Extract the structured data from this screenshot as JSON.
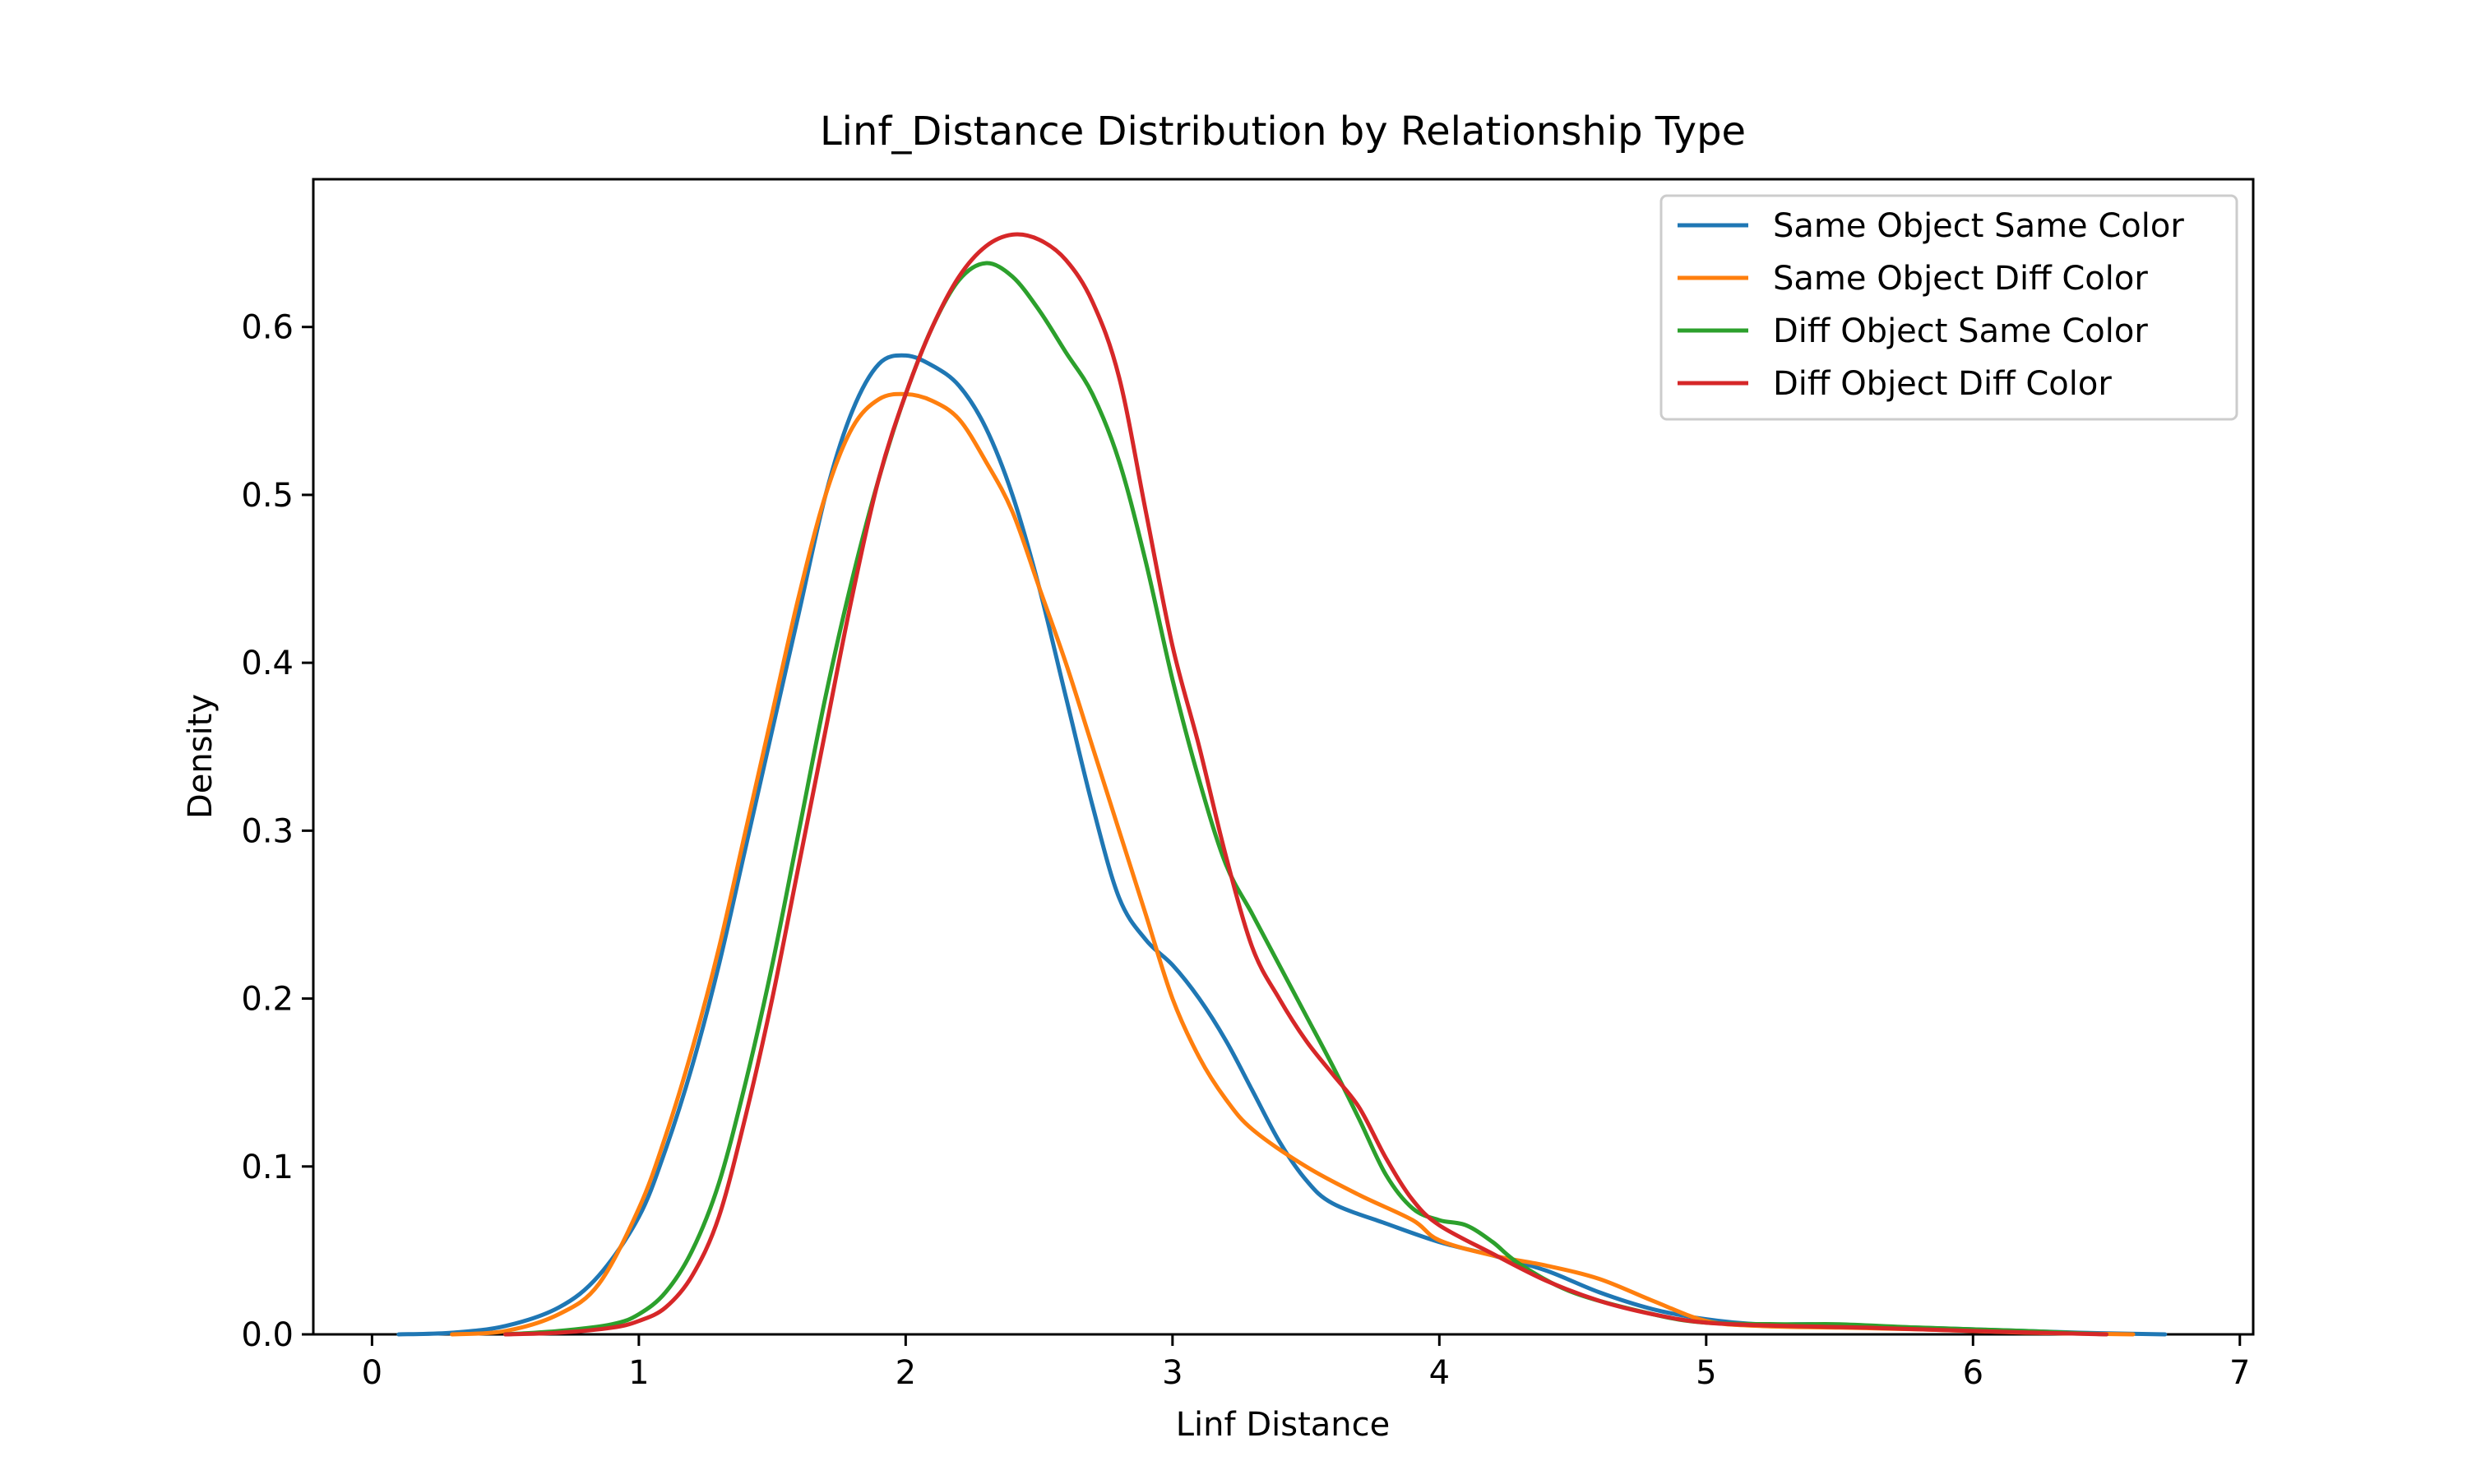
{
  "chart_data": {
    "type": "line",
    "title": "Linf_Distance Distribution by Relationship Type",
    "xlabel": "Linf Distance",
    "ylabel": "Density",
    "xlim": [
      -0.22,
      7.05
    ],
    "ylim": [
      0,
      0.688
    ],
    "xticks": [
      0,
      1,
      2,
      3,
      4,
      5,
      6,
      7
    ],
    "yticks": [
      0.0,
      0.1,
      0.2,
      0.3,
      0.4,
      0.5,
      0.6
    ],
    "xtick_labels": [
      "0",
      "1",
      "2",
      "3",
      "4",
      "5",
      "6",
      "7"
    ],
    "ytick_labels": [
      "0.0",
      "0.1",
      "0.2",
      "0.3",
      "0.4",
      "0.5",
      "0.6"
    ],
    "grid": false,
    "legend_position": "top-right",
    "series": [
      {
        "name": "Same Object Same Color",
        "color": "#1f77b4",
        "points": [
          [
            0.1,
            0.0
          ],
          [
            0.3,
            0.001
          ],
          [
            0.5,
            0.005
          ],
          [
            0.7,
            0.016
          ],
          [
            0.85,
            0.035
          ],
          [
            1.0,
            0.07
          ],
          [
            1.1,
            0.11
          ],
          [
            1.2,
            0.16
          ],
          [
            1.3,
            0.22
          ],
          [
            1.4,
            0.29
          ],
          [
            1.5,
            0.36
          ],
          [
            1.6,
            0.43
          ],
          [
            1.7,
            0.5
          ],
          [
            1.8,
            0.55
          ],
          [
            1.9,
            0.578
          ],
          [
            2.0,
            0.583
          ],
          [
            2.1,
            0.577
          ],
          [
            2.2,
            0.565
          ],
          [
            2.3,
            0.54
          ],
          [
            2.4,
            0.5
          ],
          [
            2.5,
            0.445
          ],
          [
            2.6,
            0.38
          ],
          [
            2.7,
            0.315
          ],
          [
            2.8,
            0.26
          ],
          [
            2.9,
            0.235
          ],
          [
            3.0,
            0.22
          ],
          [
            3.1,
            0.2
          ],
          [
            3.2,
            0.175
          ],
          [
            3.3,
            0.145
          ],
          [
            3.4,
            0.115
          ],
          [
            3.5,
            0.092
          ],
          [
            3.6,
            0.078
          ],
          [
            3.8,
            0.066
          ],
          [
            4.0,
            0.055
          ],
          [
            4.2,
            0.047
          ],
          [
            4.4,
            0.038
          ],
          [
            4.6,
            0.025
          ],
          [
            4.8,
            0.015
          ],
          [
            5.0,
            0.009
          ],
          [
            5.2,
            0.006
          ],
          [
            5.4,
            0.006
          ],
          [
            5.6,
            0.005
          ],
          [
            6.0,
            0.003
          ],
          [
            6.4,
            0.001
          ],
          [
            6.72,
            0.0
          ]
        ]
      },
      {
        "name": "Same Object Diff Color",
        "color": "#ff7f0e",
        "points": [
          [
            0.3,
            0.0
          ],
          [
            0.5,
            0.002
          ],
          [
            0.7,
            0.012
          ],
          [
            0.85,
            0.03
          ],
          [
            1.0,
            0.075
          ],
          [
            1.1,
            0.118
          ],
          [
            1.2,
            0.17
          ],
          [
            1.3,
            0.23
          ],
          [
            1.4,
            0.3
          ],
          [
            1.5,
            0.37
          ],
          [
            1.6,
            0.44
          ],
          [
            1.7,
            0.5
          ],
          [
            1.8,
            0.54
          ],
          [
            1.9,
            0.557
          ],
          [
            2.0,
            0.56
          ],
          [
            2.1,
            0.556
          ],
          [
            2.2,
            0.545
          ],
          [
            2.3,
            0.52
          ],
          [
            2.4,
            0.49
          ],
          [
            2.5,
            0.445
          ],
          [
            2.6,
            0.4
          ],
          [
            2.7,
            0.35
          ],
          [
            2.8,
            0.3
          ],
          [
            2.9,
            0.25
          ],
          [
            3.0,
            0.2
          ],
          [
            3.1,
            0.165
          ],
          [
            3.2,
            0.14
          ],
          [
            3.3,
            0.122
          ],
          [
            3.5,
            0.1
          ],
          [
            3.7,
            0.083
          ],
          [
            3.9,
            0.068
          ],
          [
            4.0,
            0.056
          ],
          [
            4.2,
            0.047
          ],
          [
            4.4,
            0.041
          ],
          [
            4.6,
            0.033
          ],
          [
            4.8,
            0.02
          ],
          [
            5.0,
            0.008
          ],
          [
            5.2,
            0.005
          ],
          [
            5.5,
            0.004
          ],
          [
            5.8,
            0.003
          ],
          [
            6.2,
            0.001
          ],
          [
            6.6,
            0.0
          ]
        ]
      },
      {
        "name": "Diff Object Same Color",
        "color": "#2ca02c",
        "points": [
          [
            0.5,
            0.0
          ],
          [
            0.7,
            0.002
          ],
          [
            0.9,
            0.006
          ],
          [
            1.0,
            0.012
          ],
          [
            1.1,
            0.025
          ],
          [
            1.2,
            0.05
          ],
          [
            1.3,
            0.09
          ],
          [
            1.4,
            0.15
          ],
          [
            1.5,
            0.22
          ],
          [
            1.6,
            0.3
          ],
          [
            1.7,
            0.38
          ],
          [
            1.8,
            0.45
          ],
          [
            1.9,
            0.51
          ],
          [
            2.0,
            0.56
          ],
          [
            2.1,
            0.6
          ],
          [
            2.2,
            0.628
          ],
          [
            2.3,
            0.638
          ],
          [
            2.4,
            0.63
          ],
          [
            2.5,
            0.61
          ],
          [
            2.6,
            0.585
          ],
          [
            2.7,
            0.56
          ],
          [
            2.8,
            0.52
          ],
          [
            2.9,
            0.46
          ],
          [
            3.0,
            0.39
          ],
          [
            3.1,
            0.33
          ],
          [
            3.2,
            0.28
          ],
          [
            3.3,
            0.25
          ],
          [
            3.4,
            0.22
          ],
          [
            3.5,
            0.19
          ],
          [
            3.6,
            0.16
          ],
          [
            3.7,
            0.128
          ],
          [
            3.8,
            0.095
          ],
          [
            3.9,
            0.075
          ],
          [
            4.0,
            0.068
          ],
          [
            4.1,
            0.065
          ],
          [
            4.2,
            0.055
          ],
          [
            4.3,
            0.042
          ],
          [
            4.5,
            0.025
          ],
          [
            4.8,
            0.012
          ],
          [
            5.0,
            0.007
          ],
          [
            5.3,
            0.006
          ],
          [
            5.5,
            0.006
          ],
          [
            5.8,
            0.004
          ],
          [
            6.2,
            0.002
          ],
          [
            6.5,
            0.0
          ]
        ]
      },
      {
        "name": "Diff Object Diff Color",
        "color": "#d62728",
        "points": [
          [
            0.5,
            0.0
          ],
          [
            0.7,
            0.001
          ],
          [
            0.9,
            0.004
          ],
          [
            1.0,
            0.008
          ],
          [
            1.1,
            0.016
          ],
          [
            1.2,
            0.035
          ],
          [
            1.3,
            0.07
          ],
          [
            1.4,
            0.13
          ],
          [
            1.5,
            0.2
          ],
          [
            1.6,
            0.28
          ],
          [
            1.7,
            0.36
          ],
          [
            1.8,
            0.44
          ],
          [
            1.9,
            0.51
          ],
          [
            2.0,
            0.56
          ],
          [
            2.1,
            0.6
          ],
          [
            2.2,
            0.63
          ],
          [
            2.3,
            0.648
          ],
          [
            2.4,
            0.655
          ],
          [
            2.5,
            0.652
          ],
          [
            2.6,
            0.64
          ],
          [
            2.7,
            0.615
          ],
          [
            2.8,
            0.57
          ],
          [
            2.9,
            0.49
          ],
          [
            3.0,
            0.41
          ],
          [
            3.1,
            0.35
          ],
          [
            3.2,
            0.285
          ],
          [
            3.3,
            0.23
          ],
          [
            3.4,
            0.2
          ],
          [
            3.5,
            0.175
          ],
          [
            3.6,
            0.155
          ],
          [
            3.7,
            0.135
          ],
          [
            3.8,
            0.105
          ],
          [
            3.9,
            0.08
          ],
          [
            4.0,
            0.065
          ],
          [
            4.2,
            0.048
          ],
          [
            4.4,
            0.032
          ],
          [
            4.6,
            0.02
          ],
          [
            4.8,
            0.012
          ],
          [
            5.0,
            0.007
          ],
          [
            5.3,
            0.005
          ],
          [
            5.6,
            0.004
          ],
          [
            6.0,
            0.002
          ],
          [
            6.5,
            0.0
          ]
        ]
      }
    ]
  }
}
